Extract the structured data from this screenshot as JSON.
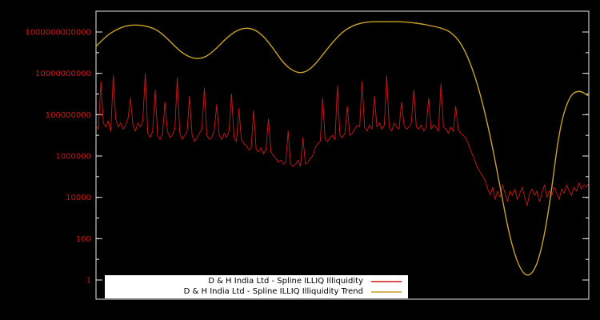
{
  "chart": {
    "background": "#000000",
    "plot_border_color": "#e8e8e8",
    "axis_label_color": "#cf1717",
    "legend_background": "#ffffff"
  },
  "chart_data": {
    "type": "line",
    "title": "",
    "xlabel": "",
    "ylabel": "",
    "y_scale": "log",
    "ylim": [
      1,
      1000000000000
    ],
    "grid": false,
    "legend_position": "bottom-left-inside",
    "note": "x values evenly spaced left-to-right across the plot; series values given as log10 of the plotted value",
    "y_ticks": [
      {
        "label": "1",
        "log10": 0
      },
      {
        "label": "100",
        "log10": 2
      },
      {
        "label": "10000",
        "log10": 4
      },
      {
        "label": "1000000",
        "log10": 6
      },
      {
        "label": "100000000",
        "log10": 8
      },
      {
        "label": "10000000000",
        "log10": 10
      },
      {
        "label": "1000000000000",
        "log10": 12
      }
    ],
    "series": [
      {
        "name": "D & H India Ltd - Spline ILLIQ Illiquidity",
        "color": "#cf1717",
        "stroke_width": 0.9,
        "smooth": false,
        "values_log10": [
          7.5,
          7.3,
          9.6,
          7.6,
          7.4,
          7.7,
          7.2,
          9.9,
          7.8,
          7.4,
          7.6,
          7.3,
          7.5,
          7.8,
          8.8,
          7.5,
          7.2,
          7.6,
          7.4,
          7.7,
          10.0,
          7.1,
          6.9,
          7.2,
          9.2,
          7.0,
          6.8,
          7.1,
          8.6,
          7.2,
          6.9,
          7.0,
          7.3,
          9.8,
          7.1,
          6.8,
          7.0,
          7.2,
          8.9,
          7.0,
          6.7,
          6.9,
          7.1,
          7.3,
          9.3,
          7.0,
          6.8,
          6.9,
          7.2,
          8.5,
          7.0,
          6.8,
          7.1,
          6.9,
          7.2,
          9.0,
          6.9,
          6.7,
          8.3,
          6.8,
          6.6,
          6.5,
          6.3,
          6.4,
          8.2,
          6.3,
          6.2,
          6.4,
          6.1,
          6.3,
          7.8,
          6.2,
          6.0,
          5.9,
          5.7,
          5.8,
          5.6,
          5.7,
          7.2,
          5.6,
          5.5,
          5.6,
          5.8,
          5.5,
          6.9,
          5.6,
          5.7,
          5.9,
          6.0,
          6.4,
          6.6,
          6.7,
          8.8,
          6.8,
          6.7,
          6.9,
          7.0,
          6.8,
          9.4,
          7.0,
          6.9,
          7.1,
          8.4,
          7.0,
          7.1,
          7.3,
          7.5,
          7.4,
          9.6,
          7.4,
          7.2,
          7.5,
          7.3,
          8.9,
          7.4,
          7.6,
          7.3,
          7.5,
          9.9,
          7.4,
          7.2,
          7.6,
          7.4,
          7.3,
          8.6,
          7.5,
          7.3,
          7.4,
          7.6,
          9.2,
          7.4,
          7.3,
          7.5,
          7.2,
          7.4,
          8.8,
          7.3,
          7.5,
          7.4,
          7.2,
          9.5,
          7.4,
          7.3,
          7.1,
          7.4,
          7.2,
          8.4,
          7.3,
          7.1,
          7.0,
          6.9,
          6.6,
          6.3,
          6.0,
          5.7,
          5.4,
          5.2,
          5.0,
          4.8,
          4.4,
          4.1,
          4.5,
          3.9,
          4.3,
          4.0,
          4.6,
          4.2,
          3.8,
          4.3,
          4.1,
          4.4,
          3.9,
          4.2,
          4.5,
          4.0,
          3.6,
          4.2,
          4.4,
          4.1,
          4.3,
          3.8,
          4.2,
          4.6,
          4.0,
          4.3,
          4.1,
          4.5,
          4.2,
          3.9,
          4.4,
          4.2,
          4.6,
          4.3,
          4.1,
          4.5,
          4.3,
          4.7,
          4.4,
          4.6,
          4.5,
          4.7
        ]
      },
      {
        "name": "D & H India Ltd - Spline ILLIQ Illiquidity Trend",
        "color": "#c9a227",
        "stroke_width": 1.4,
        "smooth": true,
        "values_log10": [
          11.3,
          11.8,
          12.1,
          12.3,
          12.35,
          12.3,
          12.15,
          11.8,
          11.3,
          10.9,
          10.7,
          10.75,
          11.1,
          11.6,
          12.0,
          12.2,
          12.15,
          11.8,
          11.2,
          10.5,
          10.1,
          10.0,
          10.3,
          10.9,
          11.5,
          12.0,
          12.3,
          12.45,
          12.5,
          12.5,
          12.5,
          12.5,
          12.45,
          12.4,
          12.3,
          12.2,
          12.0,
          11.5,
          10.5,
          9.0,
          7.0,
          4.5,
          2.0,
          0.5,
          0.1,
          1.0,
          3.5,
          7.3,
          8.9,
          9.2,
          8.9
        ]
      }
    ]
  }
}
